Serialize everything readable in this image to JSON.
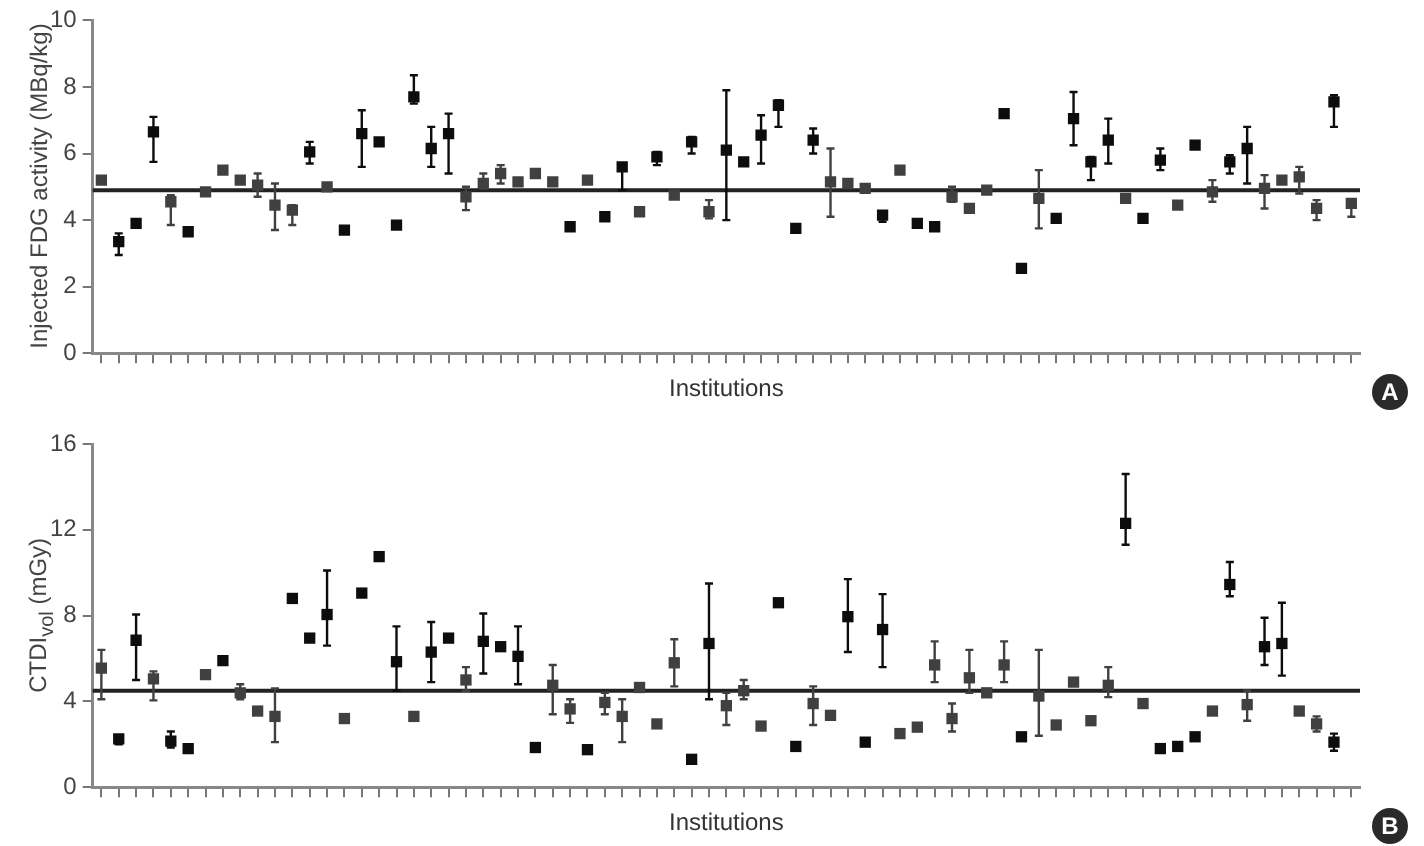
{
  "chart_data": [
    {
      "type": "scatter",
      "ylabel": "Injected FDG activity (MBq/kg)",
      "xlabel": "Institutions",
      "annotations": [
        "A"
      ],
      "categories": [
        null,
        null,
        null,
        null,
        null,
        null,
        null,
        null,
        null,
        null,
        null,
        null,
        null,
        null,
        null,
        null,
        null,
        null,
        null,
        null,
        null,
        null,
        null,
        null,
        null,
        null,
        null,
        null,
        null,
        null,
        null,
        null,
        null,
        null,
        null,
        null,
        null,
        null,
        null,
        null,
        null,
        null,
        null,
        null,
        null,
        null,
        null,
        null,
        null,
        null,
        null,
        null,
        null,
        null,
        null,
        null,
        null,
        null,
        null,
        null,
        null,
        null,
        null,
        null,
        null,
        null,
        null,
        null,
        null,
        null,
        null,
        null,
        null
      ],
      "values": [
        5.2,
        3.35,
        3.9,
        6.65,
        4.55,
        3.65,
        4.85,
        5.5,
        5.2,
        5.05,
        4.45,
        4.3,
        6.05,
        5.0,
        3.7,
        6.6,
        6.35,
        3.85,
        7.7,
        6.15,
        6.6,
        4.7,
        5.1,
        5.4,
        5.15,
        5.4,
        5.15,
        3.8,
        5.2,
        4.1,
        5.6,
        4.25,
        5.9,
        4.75,
        6.35,
        4.25,
        6.1,
        5.75,
        6.55,
        7.45,
        3.75,
        6.4,
        5.15,
        5.1,
        4.95,
        4.15,
        5.5,
        3.9,
        3.8,
        4.7,
        4.35,
        4.9,
        7.2,
        2.55,
        4.65,
        4.05,
        7.05,
        5.75,
        6.4,
        4.65,
        4.05,
        5.8,
        4.45,
        6.25,
        4.85,
        5.75,
        6.15,
        4.95,
        5.2,
        5.3,
        4.35,
        7.55,
        4.5
      ],
      "errors": [
        null,
        [
          2.95,
          3.6
        ],
        null,
        [
          5.75,
          7.1
        ],
        [
          3.85,
          4.75
        ],
        null,
        null,
        null,
        null,
        [
          4.7,
          5.4
        ],
        [
          3.7,
          5.1
        ],
        [
          3.85,
          4.45
        ],
        [
          5.7,
          6.35
        ],
        null,
        null,
        [
          5.6,
          7.3
        ],
        null,
        null,
        [
          7.5,
          8.35
        ],
        [
          5.6,
          6.8
        ],
        [
          5.4,
          7.2
        ],
        [
          4.3,
          5.0
        ],
        [
          4.95,
          5.4
        ],
        [
          5.1,
          5.65
        ],
        null,
        null,
        null,
        null,
        null,
        null,
        [
          4.9,
          5.6
        ],
        null,
        [
          5.65,
          6.05
        ],
        null,
        [
          6.0,
          6.5
        ],
        [
          4.05,
          4.6
        ],
        [
          4.0,
          7.9
        ],
        null,
        [
          5.7,
          7.15
        ],
        [
          6.8,
          7.6
        ],
        null,
        [
          6.0,
          6.75
        ],
        [
          4.1,
          6.15
        ],
        null,
        null,
        [
          3.95,
          4.2
        ],
        null,
        null,
        null,
        [
          4.55,
          5.0
        ],
        null,
        null,
        null,
        null,
        [
          3.75,
          5.5
        ],
        null,
        [
          6.25,
          7.85
        ],
        [
          5.2,
          5.9
        ],
        [
          5.7,
          7.05
        ],
        null,
        null,
        [
          5.5,
          6.15
        ],
        null,
        null,
        [
          4.55,
          5.2
        ],
        [
          5.4,
          5.95
        ],
        [
          5.1,
          6.8
        ],
        [
          4.35,
          5.35
        ],
        null,
        [
          4.8,
          5.6
        ],
        [
          4.0,
          4.6
        ],
        [
          6.8,
          7.75
        ],
        [
          4.1,
          4.6
        ]
      ],
      "colors": [
        "#404040",
        "#0d0d0d",
        "#0d0d0d",
        "#0d0d0d",
        "#404040",
        "#0d0d0d",
        "#404040",
        "#404040",
        "#404040",
        "#404040",
        "#404040",
        "#404040",
        "#0d0d0d",
        "#404040",
        "#0d0d0d",
        "#0d0d0d",
        "#0d0d0d",
        "#0d0d0d",
        "#0d0d0d",
        "#0d0d0d",
        "#0d0d0d",
        "#404040",
        "#404040",
        "#404040",
        "#404040",
        "#404040",
        "#404040",
        "#0d0d0d",
        "#404040",
        "#0d0d0d",
        "#0d0d0d",
        "#404040",
        "#0d0d0d",
        "#404040",
        "#0d0d0d",
        "#404040",
        "#0d0d0d",
        "#0d0d0d",
        "#0d0d0d",
        "#0d0d0d",
        "#0d0d0d",
        "#0d0d0d",
        "#404040",
        "#404040",
        "#404040",
        "#0d0d0d",
        "#404040",
        "#0d0d0d",
        "#0d0d0d",
        "#404040",
        "#404040",
        "#404040",
        "#0d0d0d",
        "#0d0d0d",
        "#404040",
        "#0d0d0d",
        "#0d0d0d",
        "#0d0d0d",
        "#0d0d0d",
        "#404040",
        "#0d0d0d",
        "#0d0d0d",
        "#404040",
        "#0d0d0d",
        "#404040",
        "#0d0d0d",
        "#0d0d0d",
        "#404040",
        "#404040",
        "#404040",
        "#404040",
        "#0d0d0d",
        "#404040"
      ],
      "ylim": [
        0,
        10
      ],
      "yticks": [
        0,
        2,
        4,
        6,
        8,
        10
      ],
      "ref_lines": [
        {
          "axis": "y",
          "value": 4.9,
          "color": "#222222"
        }
      ],
      "grid": false,
      "legend": false,
      "tick_labels": "y",
      "marker": "square"
    },
    {
      "type": "scatter",
      "ylabel": "CTDI$_{vol}$ (mGy)",
      "xlabel": "Institutions",
      "annotations": [
        "B"
      ],
      "categories": [
        null,
        null,
        null,
        null,
        null,
        null,
        null,
        null,
        null,
        null,
        null,
        null,
        null,
        null,
        null,
        null,
        null,
        null,
        null,
        null,
        null,
        null,
        null,
        null,
        null,
        null,
        null,
        null,
        null,
        null,
        null,
        null,
        null,
        null,
        null,
        null,
        null,
        null,
        null,
        null,
        null,
        null,
        null,
        null,
        null,
        null,
        null,
        null,
        null,
        null,
        null,
        null,
        null,
        null,
        null,
        null,
        null,
        null,
        null,
        null,
        null,
        null,
        null,
        null,
        null,
        null,
        null,
        null,
        null,
        null,
        null,
        null,
        null
      ],
      "values": [
        5.55,
        2.25,
        6.85,
        5.05,
        2.15,
        1.8,
        5.25,
        5.9,
        4.4,
        3.55,
        3.3,
        8.8,
        6.95,
        8.05,
        3.2,
        9.05,
        10.75,
        5.85,
        3.3,
        6.3,
        6.95,
        5.0,
        6.8,
        6.55,
        6.1,
        1.85,
        4.75,
        3.65,
        1.75,
        3.95,
        3.3,
        4.65,
        2.95,
        5.8,
        1.3,
        6.7,
        3.8,
        4.5,
        2.85,
        8.6,
        1.9,
        3.9,
        3.35,
        7.95,
        2.1,
        7.35,
        2.5,
        2.8,
        5.7,
        3.2,
        5.1,
        4.4,
        5.7,
        2.35,
        4.25,
        2.9,
        4.9,
        3.1,
        4.75,
        12.3,
        3.9,
        1.8,
        1.9,
        2.35,
        3.55,
        9.45,
        3.85,
        6.55,
        6.7,
        3.55,
        2.95,
        2.1,
        null
      ],
      "errors": [
        [
          4.1,
          6.4
        ],
        [
          2.0,
          2.3
        ],
        [
          5.0,
          8.05
        ],
        [
          4.05,
          5.4
        ],
        [
          1.85,
          2.6
        ],
        null,
        null,
        null,
        [
          4.1,
          4.8
        ],
        null,
        [
          2.1,
          4.6
        ],
        null,
        null,
        [
          6.6,
          10.1
        ],
        null,
        null,
        null,
        [
          4.5,
          7.5
        ],
        null,
        [
          4.9,
          7.7
        ],
        null,
        [
          4.5,
          5.6
        ],
        [
          5.3,
          8.1
        ],
        null,
        [
          4.8,
          7.5
        ],
        null,
        [
          3.4,
          5.7
        ],
        [
          3.0,
          4.1
        ],
        null,
        [
          3.4,
          4.4
        ],
        [
          2.1,
          4.1
        ],
        null,
        null,
        [
          4.7,
          6.9
        ],
        null,
        [
          4.1,
          9.5
        ],
        [
          2.9,
          4.4
        ],
        [
          4.1,
          5.0
        ],
        null,
        null,
        null,
        [
          2.9,
          4.7
        ],
        null,
        [
          6.3,
          9.7
        ],
        null,
        [
          5.6,
          9.0
        ],
        null,
        null,
        [
          4.9,
          6.8
        ],
        [
          2.6,
          3.9
        ],
        [
          4.4,
          6.4
        ],
        null,
        [
          4.9,
          6.8
        ],
        null,
        [
          2.4,
          6.4
        ],
        null,
        null,
        null,
        [
          4.2,
          5.6
        ],
        [
          11.3,
          14.6
        ],
        null,
        null,
        null,
        null,
        null,
        [
          8.9,
          10.5
        ],
        [
          3.1,
          4.5
        ],
        [
          5.7,
          7.9
        ],
        [
          5.2,
          8.6
        ],
        null,
        [
          2.6,
          3.3
        ],
        [
          1.7,
          2.5
        ],
        null
      ],
      "colors": [
        "#404040",
        "#0d0d0d",
        "#0d0d0d",
        "#404040",
        "#0d0d0d",
        "#0d0d0d",
        "#404040",
        "#0d0d0d",
        "#404040",
        "#404040",
        "#404040",
        "#0d0d0d",
        "#0d0d0d",
        "#0d0d0d",
        "#404040",
        "#0d0d0d",
        "#0d0d0d",
        "#0d0d0d",
        "#404040",
        "#0d0d0d",
        "#0d0d0d",
        "#404040",
        "#0d0d0d",
        "#0d0d0d",
        "#0d0d0d",
        "#0d0d0d",
        "#404040",
        "#404040",
        "#0d0d0d",
        "#404040",
        "#404040",
        "#404040",
        "#404040",
        "#404040",
        "#0d0d0d",
        "#0d0d0d",
        "#404040",
        "#404040",
        "#404040",
        "#0d0d0d",
        "#0d0d0d",
        "#404040",
        "#404040",
        "#0d0d0d",
        "#0d0d0d",
        "#0d0d0d",
        "#404040",
        "#404040",
        "#404040",
        "#404040",
        "#404040",
        "#404040",
        "#404040",
        "#0d0d0d",
        "#404040",
        "#404040",
        "#404040",
        "#404040",
        "#404040",
        "#0d0d0d",
        "#404040",
        "#0d0d0d",
        "#0d0d0d",
        "#0d0d0d",
        "#404040",
        "#0d0d0d",
        "#404040",
        "#0d0d0d",
        "#0d0d0d",
        "#404040",
        "#404040",
        "#0d0d0d",
        "#404040"
      ],
      "ylim": [
        0,
        16
      ],
      "yticks": [
        0,
        4,
        8,
        12,
        16
      ],
      "ref_lines": [
        {
          "axis": "y",
          "value": 4.5,
          "color": "#222222"
        }
      ],
      "grid": false,
      "legend": false,
      "tick_labels": "y",
      "marker": "square"
    }
  ]
}
